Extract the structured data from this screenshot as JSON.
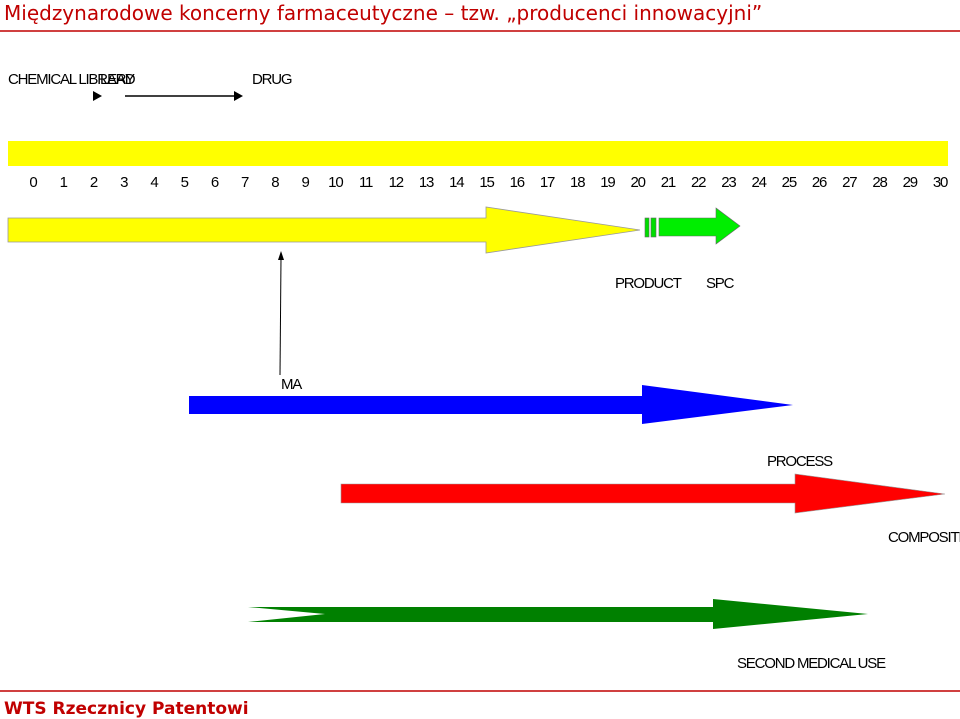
{
  "header": {
    "title": "Międzynarodowe koncerny farmaceutyczne – tzw. „producenci innowacyjni”"
  },
  "stages": {
    "chemical_library": "CHEMICAL LIBRARY",
    "lead": "LEAD",
    "drug": "DRUG"
  },
  "timeline": {
    "years": [
      0,
      1,
      2,
      3,
      4,
      5,
      6,
      7,
      8,
      9,
      10,
      11,
      12,
      13,
      14,
      15,
      16,
      17,
      18,
      19,
      20,
      21,
      22,
      23,
      24,
      25,
      26,
      27,
      28,
      29,
      30
    ]
  },
  "labels": {
    "product": "PRODUCT",
    "spc": "SPC",
    "ma": "MA",
    "process": "PROCESS",
    "composition": "COMPOSITION",
    "second_medical_use": "SECOND MEDICAL USE"
  },
  "footer": {
    "text": "WTS Rzecznicy Patentowi"
  }
}
